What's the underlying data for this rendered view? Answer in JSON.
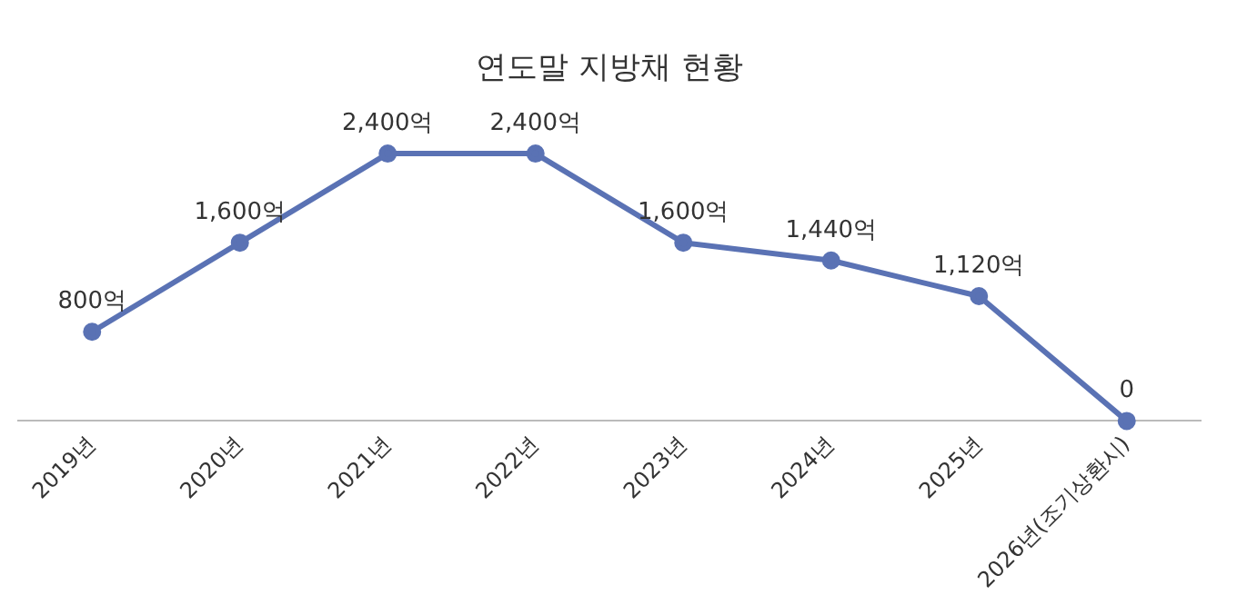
{
  "chart_data": {
    "type": "line",
    "title": "연도말 지방채 현황",
    "categories": [
      "2019년",
      "2020년",
      "2021년",
      "2022년",
      "2023년",
      "2024년",
      "2025년",
      "2026년(조기상환시)"
    ],
    "series": [
      {
        "color": "#5a72b4",
        "values": [
          800,
          1600,
          2400,
          2400,
          1600,
          1440,
          1120,
          0
        ],
        "value_labels": [
          "800억",
          "1,600억",
          "2,400억",
          "2,400억",
          "1,600억",
          "1,440억",
          "1,120억",
          "0"
        ]
      }
    ],
    "marker": "circle",
    "grid": false,
    "legend": false
  }
}
